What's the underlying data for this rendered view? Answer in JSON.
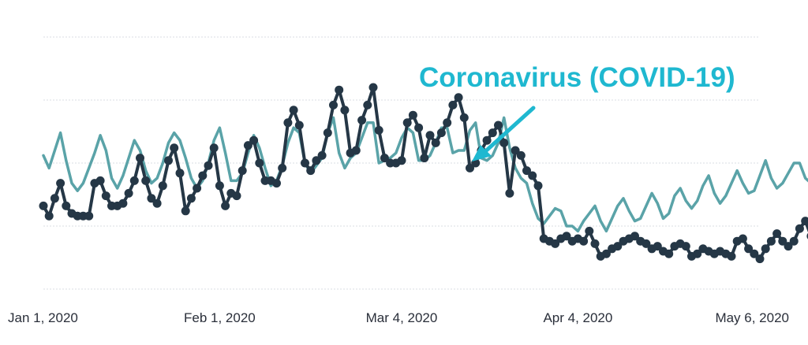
{
  "chart_data": {
    "type": "line",
    "title": "",
    "xlabel": "",
    "ylabel": "",
    "x_start": "2020-01-01",
    "x_end": "2020-05-06",
    "ylim": [
      0,
      100
    ],
    "grid": true,
    "x_ticks": [
      {
        "date": "2020-01-01",
        "label": "Jan 1, 2020"
      },
      {
        "date": "2020-02-01",
        "label": "Feb 1, 2020"
      },
      {
        "date": "2020-03-04",
        "label": "Mar 4, 2020"
      },
      {
        "date": "2020-04-04",
        "label": "Apr 4, 2020"
      },
      {
        "date": "2020-05-06",
        "label": "May 6, 2020"
      }
    ],
    "y_gridlines": [
      100,
      75,
      50,
      25,
      0
    ],
    "series": [
      {
        "color": "#5aa3a8",
        "markers": false,
        "values": [
          53,
          48,
          55,
          62,
          51,
          42,
          39,
          42,
          48,
          54,
          61,
          55,
          44,
          40,
          45,
          52,
          59,
          55,
          47,
          42,
          44,
          50,
          58,
          62,
          59,
          52,
          44,
          40,
          43,
          50,
          59,
          64,
          54,
          43,
          43,
          46,
          54,
          61,
          56,
          48,
          41,
          43,
          49,
          58,
          64,
          62,
          50,
          46,
          49,
          52,
          62,
          68,
          54,
          48,
          52,
          54,
          60,
          66,
          66,
          50,
          51,
          52,
          54,
          60,
          64,
          62,
          51,
          51,
          53,
          58,
          64,
          64,
          54,
          55,
          55,
          63,
          66,
          52,
          51,
          53,
          58,
          68,
          56,
          48,
          44,
          42,
          34,
          28,
          26,
          29,
          32,
          31,
          25,
          25,
          23,
          27,
          30,
          33,
          27,
          23,
          28,
          33,
          36,
          31,
          27,
          28,
          33,
          38,
          34,
          28,
          30,
          37,
          40,
          35,
          32,
          35,
          41,
          45,
          38,
          34,
          37,
          42,
          47,
          42,
          38,
          39,
          45,
          51,
          44,
          40,
          42,
          46,
          50,
          50,
          44,
          42,
          46
        ]
      },
      {
        "color": "#253746",
        "markers": true,
        "values": [
          33,
          29,
          36,
          42,
          33,
          30,
          29,
          29,
          29,
          42,
          43,
          37,
          33,
          33,
          34,
          38,
          43,
          52,
          43,
          36,
          34,
          41,
          51,
          56,
          46,
          31,
          36,
          40,
          45,
          49,
          56,
          41,
          33,
          38,
          37,
          47,
          57,
          59,
          50,
          43,
          43,
          42,
          48,
          66,
          71,
          65,
          50,
          47,
          51,
          53,
          62,
          73,
          79,
          71,
          54,
          55,
          67,
          73,
          80,
          63,
          52,
          50,
          50,
          51,
          66,
          69,
          64,
          52,
          61,
          58,
          62,
          66,
          73,
          76,
          68,
          48,
          50,
          55,
          59,
          62,
          65,
          58,
          38,
          55,
          53,
          47,
          45,
          41,
          20,
          19,
          18,
          20,
          21,
          19,
          20,
          19,
          23,
          18,
          13,
          14,
          16,
          17,
          19,
          20,
          21,
          19,
          18,
          16,
          17,
          15,
          14,
          17,
          18,
          17,
          13,
          14,
          16,
          15,
          14,
          15,
          14,
          13,
          19,
          20,
          16,
          14,
          12,
          16,
          19,
          22,
          19,
          17,
          19,
          24,
          27,
          21,
          22
        ]
      }
    ],
    "annotation": {
      "text": "Coronavirus (COVID-19)",
      "color": "#1fb8d0"
    }
  }
}
